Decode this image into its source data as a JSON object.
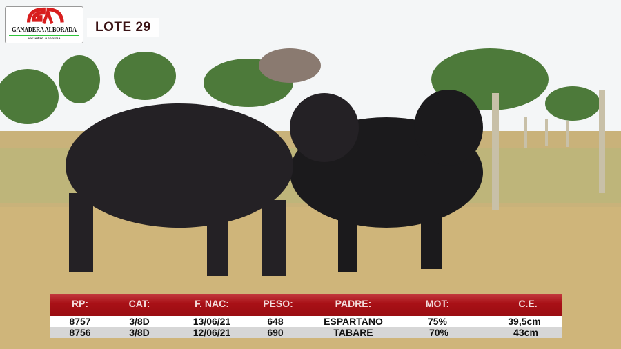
{
  "logo": {
    "brand": "GANADERA ALBORADA",
    "subtitle": "Sociedad Anónima",
    "colors": {
      "red": "#d81e1e",
      "green": "#2ec43a"
    }
  },
  "lot": {
    "label": "LOTE 29"
  },
  "table": {
    "headers": [
      "RP:",
      "CAT:",
      "F. NAC:",
      "PESO:",
      "PADRE:",
      "MOT:",
      "C.E."
    ],
    "rows": [
      [
        "8757",
        "3/8D",
        "13/06/21",
        "648",
        "ESPARTANO",
        "75%",
        "39,5cm"
      ],
      [
        "8756",
        "3/8D",
        "12/06/21",
        "690",
        "TABARE",
        "70%",
        "43cm"
      ]
    ],
    "header_color": "#a81016"
  }
}
